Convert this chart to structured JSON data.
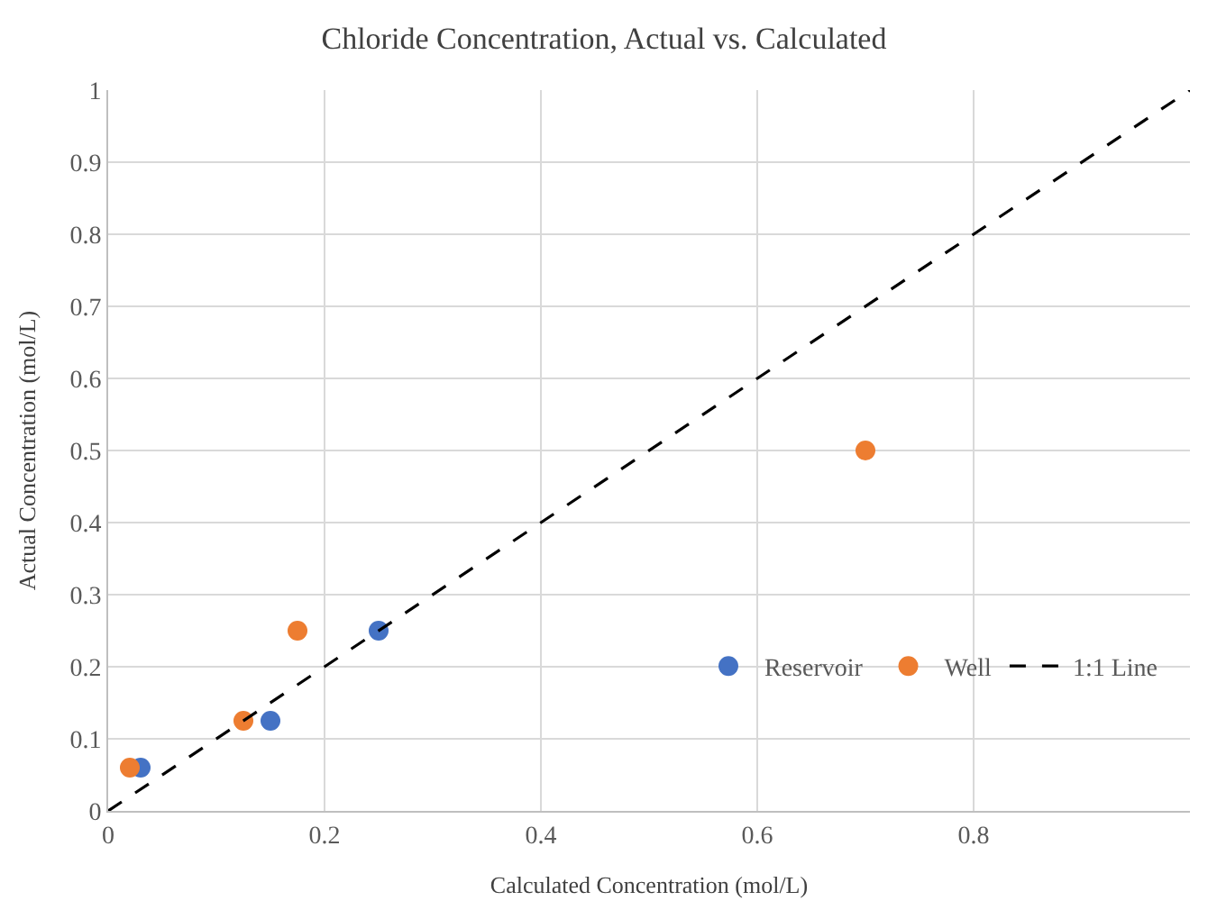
{
  "chart_data": {
    "type": "scatter",
    "title": "Chloride Concentration, Actual vs. Calculated",
    "xlabel": "Calculated Concentration (mol/L)",
    "ylabel": "Actual Concentration (mol/L)",
    "xlim": [
      0,
      1
    ],
    "xticks": [
      0,
      0.2,
      0.4,
      0.6,
      0.8
    ],
    "ylim": [
      0,
      1
    ],
    "yticks": [
      0,
      0.1,
      0.2,
      0.3,
      0.4,
      0.5,
      0.6,
      0.7,
      0.8,
      0.9,
      1
    ],
    "grid": true,
    "legend": "bottom right",
    "marker": "circle",
    "series": [
      {
        "name": "Reservoir",
        "color": "#4472c4",
        "x": [
          0.03,
          0.15,
          0.25
        ],
        "values": [
          0.06,
          0.125,
          0.25
        ]
      },
      {
        "name": "Well",
        "color": "#ed7d31",
        "x": [
          0.02,
          0.125,
          0.175,
          0.7
        ],
        "values": [
          0.06,
          0.125,
          0.25,
          0.5
        ]
      },
      {
        "name": "1:1 Line",
        "type": "line",
        "color": "#000000",
        "line_style": "dashed",
        "marker": "none",
        "x": [
          0,
          1
        ],
        "values": [
          0,
          1
        ]
      }
    ]
  }
}
